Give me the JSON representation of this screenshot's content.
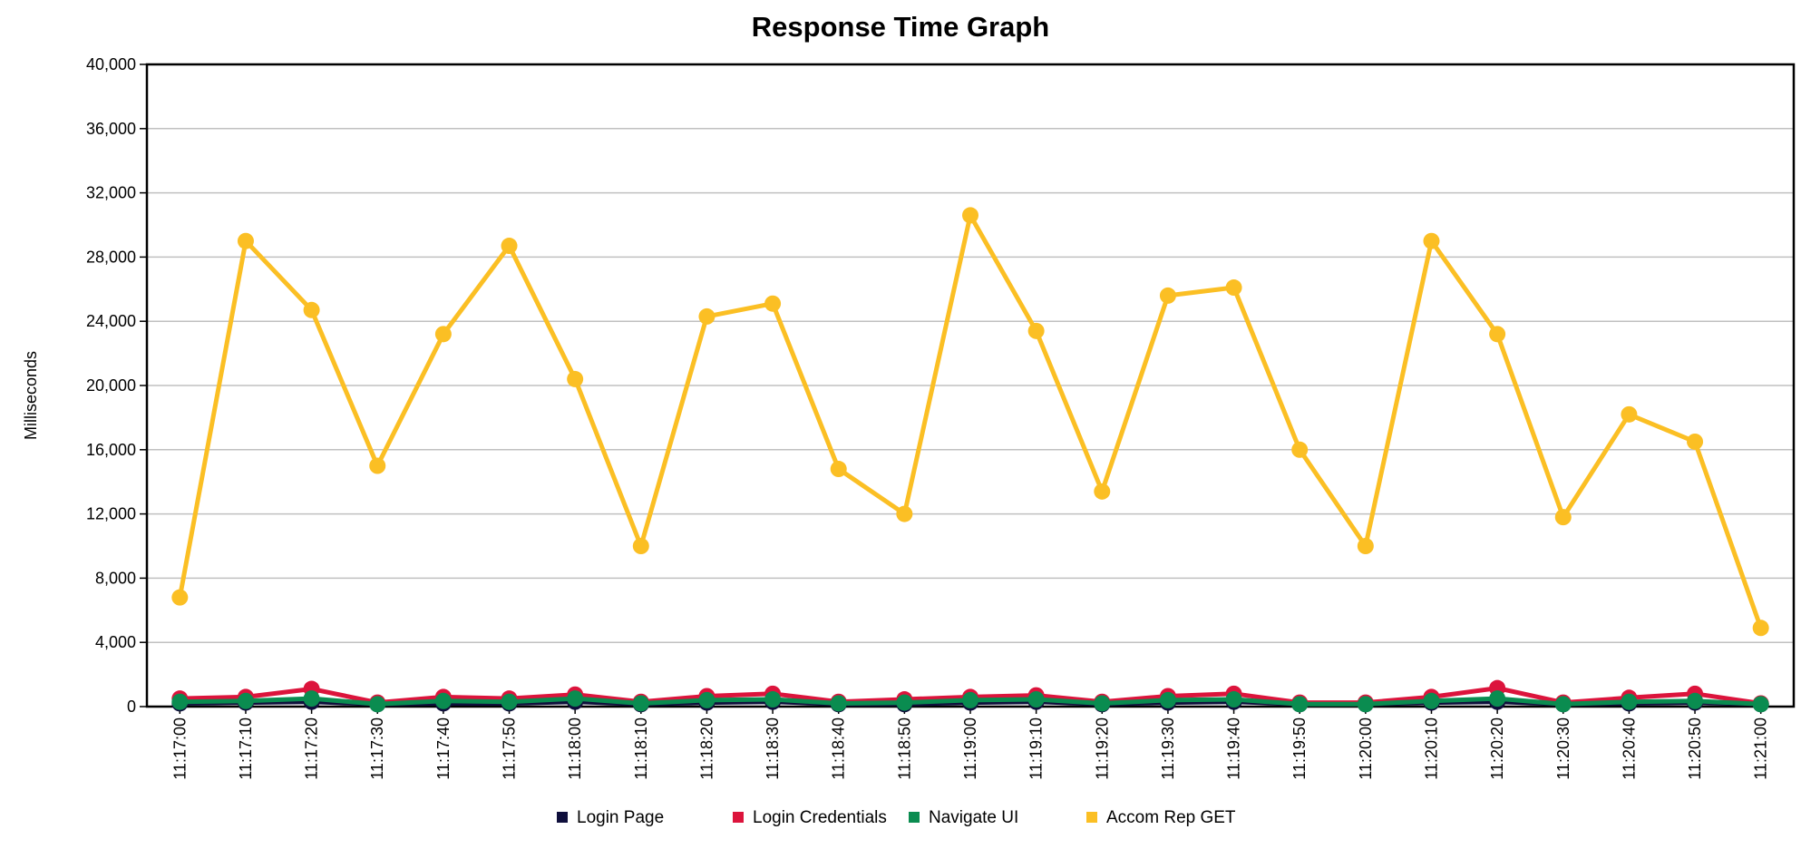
{
  "chart_data": {
    "type": "line",
    "title": "Response Time Graph",
    "xlabel": "",
    "ylabel": "Milliseconds",
    "ylim": [
      0,
      40000
    ],
    "yticks": [
      0,
      4000,
      8000,
      12000,
      16000,
      20000,
      24000,
      28000,
      32000,
      36000,
      40000
    ],
    "ytick_labels": [
      "0",
      "4,000",
      "8,000",
      "12,000",
      "16,000",
      "20,000",
      "24,000",
      "28,000",
      "32,000",
      "36,000",
      "40,000"
    ],
    "grid": true,
    "legend_position": "bottom",
    "categories": [
      "11:17:00",
      "11:17:10",
      "11:17:20",
      "11:17:30",
      "11:17:40",
      "11:17:50",
      "11:18:00",
      "11:18:10",
      "11:18:20",
      "11:18:30",
      "11:18:40",
      "11:18:50",
      "11:19:00",
      "11:19:10",
      "11:19:20",
      "11:19:30",
      "11:19:40",
      "11:19:50",
      "11:20:00",
      "11:20:10",
      "11:20:20",
      "11:20:30",
      "11:20:40",
      "11:20:50",
      "11:21:00"
    ],
    "series": [
      {
        "name": "Login Page",
        "color": "#0f0f3c",
        "values": [
          200,
          250,
          300,
          150,
          200,
          200,
          300,
          150,
          250,
          300,
          150,
          150,
          250,
          300,
          150,
          250,
          300,
          150,
          150,
          250,
          300,
          150,
          200,
          250,
          150
        ]
      },
      {
        "name": "Login Credentials",
        "color": "#dc143c",
        "values": [
          500,
          600,
          1100,
          250,
          600,
          500,
          750,
          300,
          650,
          800,
          300,
          450,
          600,
          700,
          300,
          650,
          800,
          250,
          250,
          600,
          1150,
          250,
          550,
          800,
          200
        ]
      },
      {
        "name": "Navigate UI",
        "color": "#0a8c50",
        "values": [
          300,
          350,
          500,
          150,
          350,
          300,
          500,
          200,
          400,
          450,
          200,
          250,
          400,
          450,
          200,
          400,
          450,
          150,
          150,
          350,
          500,
          150,
          300,
          350,
          150
        ]
      },
      {
        "name": "Accom Rep GET",
        "color": "#fbbf24",
        "values": [
          6800,
          29000,
          24700,
          15000,
          23200,
          28700,
          20400,
          10000,
          24300,
          25100,
          14800,
          12000,
          30600,
          23400,
          13400,
          25600,
          26100,
          16000,
          10000,
          29000,
          23200,
          11800,
          18200,
          16500,
          4900
        ]
      }
    ]
  }
}
